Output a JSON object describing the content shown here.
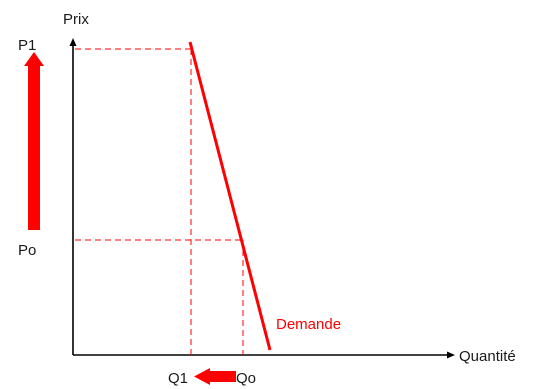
{
  "axes": {
    "y_label": "Prix",
    "x_label": "Quantité"
  },
  "price_labels": {
    "p1": "P1",
    "po": "Po"
  },
  "quantity_labels": {
    "q1": "Q1",
    "qo": "Qo"
  },
  "curve": {
    "label": "Demande"
  },
  "colors": {
    "accent": "#ff0000",
    "axis": "#000000",
    "text": "#1a1a1a"
  }
}
